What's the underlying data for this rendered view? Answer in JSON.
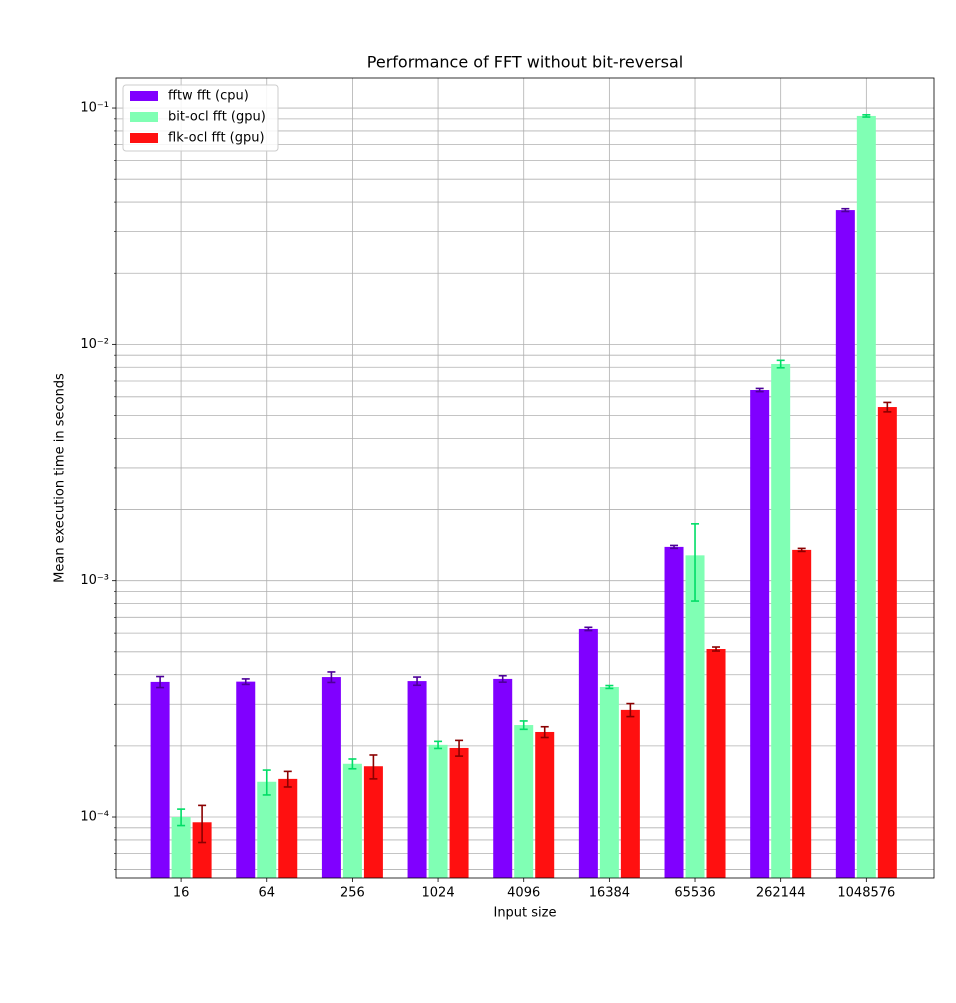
{
  "chart_data": {
    "type": "bar",
    "title": "Performance of FFT without bit-reversal",
    "x_label": "Input size",
    "y_label": "Mean execution time in seconds",
    "categories": [
      "16",
      "64",
      "256",
      "1024",
      "4096",
      "16384",
      "65536",
      "262144",
      "1048576"
    ],
    "yscale": "log",
    "grid": true,
    "legend": "upper left",
    "ylim": [
      5.52e-05,
      0.134
    ],
    "yticks": [
      {
        "value": 0.0001,
        "label": "10⁻⁴"
      },
      {
        "value": 0.001,
        "label": "10⁻³"
      },
      {
        "value": 0.01,
        "label": "10⁻²"
      },
      {
        "value": 0.1,
        "label": "10⁻¹"
      }
    ],
    "yminorticks": [
      6e-05,
      7e-05,
      8e-05,
      9e-05,
      0.0002,
      0.0003,
      0.0004,
      0.0005,
      0.0006,
      0.0007,
      0.0008,
      0.0009,
      0.002,
      0.003,
      0.004,
      0.005,
      0.006,
      0.007,
      0.008,
      0.009,
      0.02,
      0.03,
      0.04,
      0.05,
      0.06,
      0.07,
      0.08,
      0.09
    ],
    "series": [
      {
        "name": "fftw fft (cpu)",
        "color": "#8000ff",
        "error_color": "#4d0099",
        "values": [
          0.000373,
          0.000374,
          0.000391,
          0.000376,
          0.000384,
          0.000625,
          0.00139,
          0.00641,
          0.037
        ],
        "errors": [
          2e-05,
          1e-05,
          2e-05,
          1.5e-05,
          1.2e-05,
          1e-05,
          2e-05,
          0.0001,
          0.0005
        ]
      },
      {
        "name": "bit-ocl fft (gpu)",
        "color": "#80ffb4",
        "error_color": "#00dd66",
        "values": [
          0.0001,
          0.000141,
          0.000168,
          0.000202,
          0.000245,
          0.000355,
          0.00128,
          0.00826,
          0.0926
        ],
        "errors": [
          8e-06,
          1.7e-05,
          8e-06,
          7e-06,
          1e-05,
          5e-06,
          0.00046,
          0.0003,
          0.001
        ]
      },
      {
        "name": "flk-ocl fft (gpu)",
        "color": "#ff1010",
        "error_color": "#8b0000",
        "values": [
          9.5e-05,
          0.000145,
          0.000164,
          0.000196,
          0.000229,
          0.000284,
          0.000514,
          0.00135,
          0.00543
        ],
        "errors": [
          1.7e-05,
          1.1e-05,
          1.9e-05,
          1.5e-05,
          1.2e-05,
          1.8e-05,
          1e-05,
          2e-05,
          0.00025
        ]
      }
    ]
  }
}
